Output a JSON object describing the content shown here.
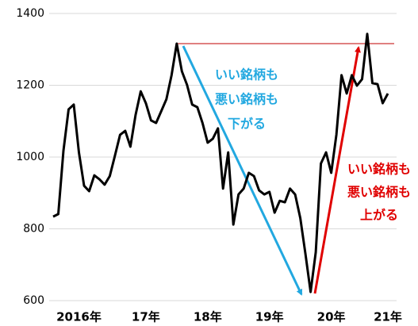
{
  "chart_data": {
    "type": "line",
    "categories": [
      null,
      null,
      null,
      null,
      null,
      "2016年",
      null,
      null,
      null,
      null,
      null,
      null,
      null,
      null,
      null,
      null,
      null,
      null,
      "17年",
      null,
      null,
      null,
      null,
      null,
      null,
      null,
      null,
      null,
      null,
      null,
      "18年",
      null,
      null,
      null,
      null,
      null,
      null,
      null,
      null,
      null,
      null,
      null,
      "19年",
      null,
      null,
      null,
      null,
      null,
      null,
      null,
      null,
      null,
      null,
      null,
      "20年",
      null,
      null,
      null,
      null,
      null,
      null,
      null,
      null,
      null,
      null,
      "21年"
    ],
    "series": [
      {
        "color": "#000000",
        "values": [
          834,
          841,
          1018,
          1133,
          1146,
          1013,
          920,
          905,
          949,
          938,
          923,
          947,
          1004,
          1062,
          1073,
          1029,
          1117,
          1183,
          1150,
          1102,
          1095,
          1128,
          1161,
          1228,
          1316,
          1239,
          1201,
          1146,
          1139,
          1095,
          1040,
          1051,
          1080,
          912,
          1013,
          812,
          896,
          912,
          956,
          947,
          907,
          896,
          903,
          845,
          878,
          874,
          912,
          896,
          830,
          730,
          624,
          735,
          982,
          1013,
          956,
          1062,
          1228,
          1177,
          1228,
          1199,
          1217,
          1343,
          1206,
          1203,
          1150,
          1177
        ]
      }
    ],
    "ylim": [
      600,
      1400
    ],
    "yticks": [
      600,
      800,
      1000,
      1200,
      1400
    ],
    "grid": true,
    "reference_line": {
      "value": 1316,
      "color": "#c00000"
    },
    "annotations": [
      {
        "color": "#22a8e0",
        "lines": [
          "いい銘柄も",
          "悪い銘柄も",
          "下がる"
        ]
      },
      {
        "color": "#e00000",
        "lines": [
          "いい銘柄も",
          "悪い銘柄も",
          "上がる"
        ]
      }
    ]
  }
}
